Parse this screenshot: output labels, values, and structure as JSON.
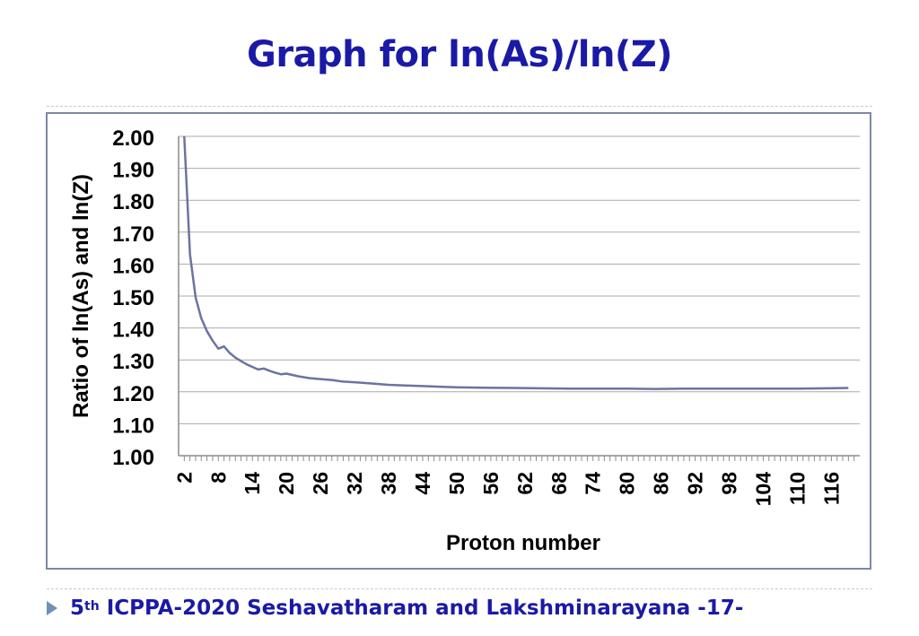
{
  "slide": {
    "title": "Graph for ln(As)/ln(Z)",
    "footer_edition": "5",
    "footer_superscript": "th",
    "footer_text": "ICPPA-2020 Seshavatharam and Lakshminarayana",
    "footer_page": "-17-",
    "colors": {
      "title": "#1a1aa6",
      "line": "#6b74a0",
      "frame": "#7b8aa3",
      "bullet": "#6f8fb5"
    }
  },
  "chart_data": {
    "type": "line",
    "title": "",
    "xlabel": "Proton number",
    "ylabel": "Ratio of  ln(As) and ln(Z)",
    "ylim": [
      1.0,
      2.0
    ],
    "xlim": [
      1,
      121
    ],
    "yticks": [
      "2.00",
      "1.90",
      "1.80",
      "1.70",
      "1.60",
      "1.50",
      "1.40",
      "1.30",
      "1.20",
      "1.10",
      "1.00"
    ],
    "xticks": [
      "2",
      "8",
      "14",
      "20",
      "26",
      "32",
      "38",
      "44",
      "50",
      "56",
      "62",
      "68",
      "74",
      "80",
      "86",
      "92",
      "98",
      "104",
      "110",
      "116"
    ],
    "grid": true,
    "series": [
      {
        "name": "ln(As)/ln(Z)",
        "x": [
          2,
          3,
          4,
          5,
          6,
          7,
          8,
          9,
          10,
          11,
          12,
          13,
          14,
          15,
          16,
          17,
          18,
          19,
          20,
          22,
          24,
          26,
          28,
          30,
          32,
          35,
          38,
          41,
          44,
          47,
          50,
          55,
          60,
          65,
          70,
          75,
          80,
          85,
          90,
          95,
          100,
          105,
          110,
          115,
          119
        ],
        "y": [
          2.0,
          1.63,
          1.495,
          1.43,
          1.39,
          1.36,
          1.335,
          1.342,
          1.322,
          1.307,
          1.296,
          1.286,
          1.278,
          1.27,
          1.273,
          1.266,
          1.26,
          1.255,
          1.257,
          1.249,
          1.243,
          1.24,
          1.237,
          1.232,
          1.23,
          1.226,
          1.222,
          1.22,
          1.218,
          1.216,
          1.214,
          1.213,
          1.212,
          1.211,
          1.21,
          1.21,
          1.21,
          1.209,
          1.21,
          1.21,
          1.21,
          1.21,
          1.21,
          1.211,
          1.212
        ]
      }
    ]
  }
}
